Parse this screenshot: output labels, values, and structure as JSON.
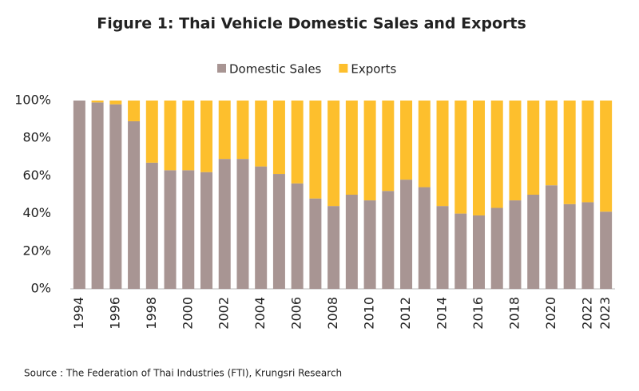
{
  "chart_data": {
    "type": "stacked_bar",
    "title": "Figure 1: Thai Vehicle Domestic Sales and Exports",
    "categories": [
      "1994",
      null,
      "1996",
      null,
      "1998",
      null,
      "2000",
      null,
      "2002",
      null,
      "2004",
      null,
      "2006",
      null,
      "2008",
      null,
      "2010",
      null,
      "2012",
      null,
      "2014",
      null,
      "2016",
      null,
      "2018",
      null,
      "2020",
      null,
      "2022",
      "2023"
    ],
    "series": [
      {
        "name": "Domestic Sales",
        "color": "#a89593",
        "values": [
          100,
          99,
          98,
          89,
          67,
          63,
          63,
          62,
          69,
          69,
          65,
          61,
          56,
          48,
          44,
          50,
          47,
          52,
          58,
          54,
          44,
          40,
          39,
          43,
          47,
          50,
          55,
          45,
          46,
          41
        ]
      },
      {
        "name": "Exports",
        "color": "#fdbf2d",
        "values": [
          0,
          1,
          2,
          11,
          33,
          37,
          37,
          38,
          31,
          31,
          35,
          39,
          44,
          52,
          56,
          50,
          53,
          48,
          42,
          46,
          56,
          60,
          61,
          57,
          53,
          50,
          45,
          55,
          54,
          59
        ]
      }
    ],
    "ylim": [
      0,
      100
    ],
    "yticks": [
      {
        "value": 0,
        "label": "0%"
      },
      {
        "value": 20,
        "label": "20%"
      },
      {
        "value": 40,
        "label": "40%"
      },
      {
        "value": 60,
        "label": "60%"
      },
      {
        "value": 80,
        "label": "80%"
      },
      {
        "value": 100,
        "label": "100%"
      }
    ],
    "legend": "top",
    "source": "Source : The Federation of Thai Industries (FTI), Krungsri Research"
  }
}
